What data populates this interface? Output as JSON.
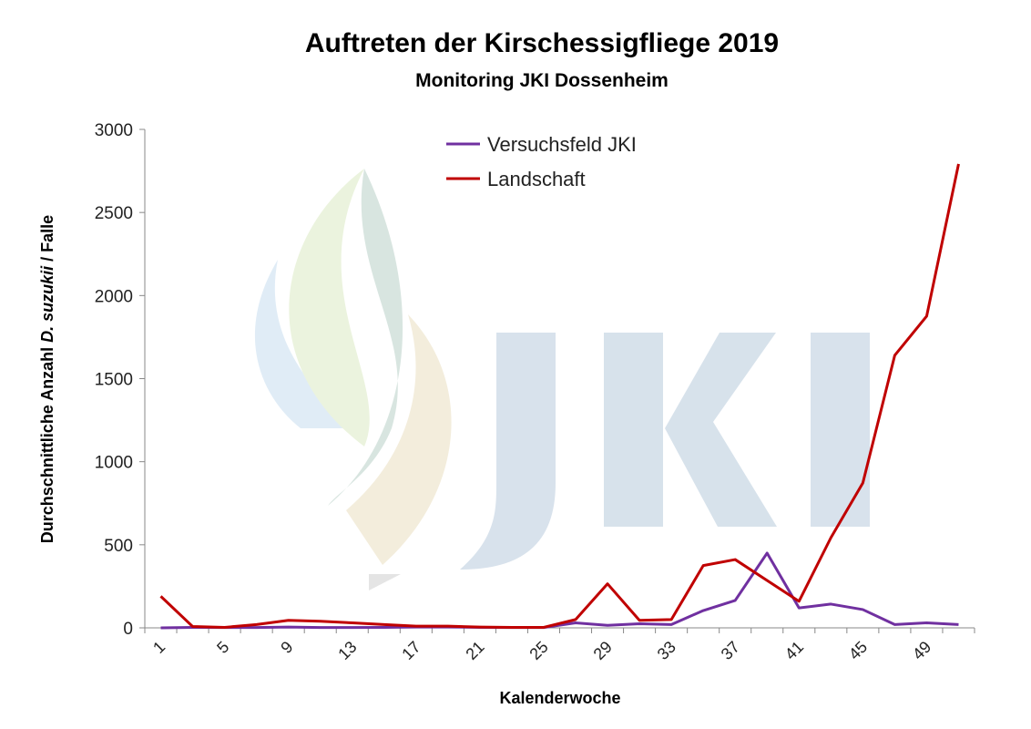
{
  "chart_data": {
    "type": "line",
    "title": "Auftreten der Kirschessigfliege 2019",
    "subtitle": "Monitoring JKI Dossenheim",
    "xlabel": "Kalenderwoche",
    "ylabel_prefix": "Durchschnittliche Anzahl ",
    "ylabel_italic": "D. suzukii",
    "ylabel_suffix": " / Falle",
    "ylim": [
      0,
      3000
    ],
    "yticks": [
      0,
      500,
      1000,
      1500,
      2000,
      2500,
      3000
    ],
    "x": [
      1,
      3,
      5,
      7,
      9,
      11,
      13,
      15,
      17,
      19,
      21,
      23,
      25,
      27,
      29,
      31,
      33,
      35,
      37,
      39,
      41,
      43,
      45,
      47,
      49,
      51
    ],
    "xtick_labels": [
      "1",
      "5",
      "9",
      "13",
      "17",
      "21",
      "25",
      "29",
      "33",
      "37",
      "41",
      "45",
      "49"
    ],
    "grid": false,
    "legend_position": "top-center",
    "series": [
      {
        "name": "Versuchsfeld JKI",
        "color": "#7030a0",
        "values": [
          0,
          3,
          2,
          2,
          5,
          2,
          2,
          3,
          5,
          5,
          3,
          2,
          2,
          30,
          15,
          25,
          20,
          104,
          165,
          450,
          120,
          143,
          110,
          20,
          30,
          20
        ]
      },
      {
        "name": "Landschaft",
        "color": "#c00000",
        "values": [
          190,
          8,
          3,
          20,
          45,
          40,
          30,
          20,
          10,
          10,
          5,
          3,
          3,
          50,
          265,
          45,
          50,
          375,
          411,
          285,
          160,
          543,
          872,
          1640,
          1876,
          2792
        ]
      }
    ]
  },
  "watermark": {
    "logo_text": "JKI"
  }
}
